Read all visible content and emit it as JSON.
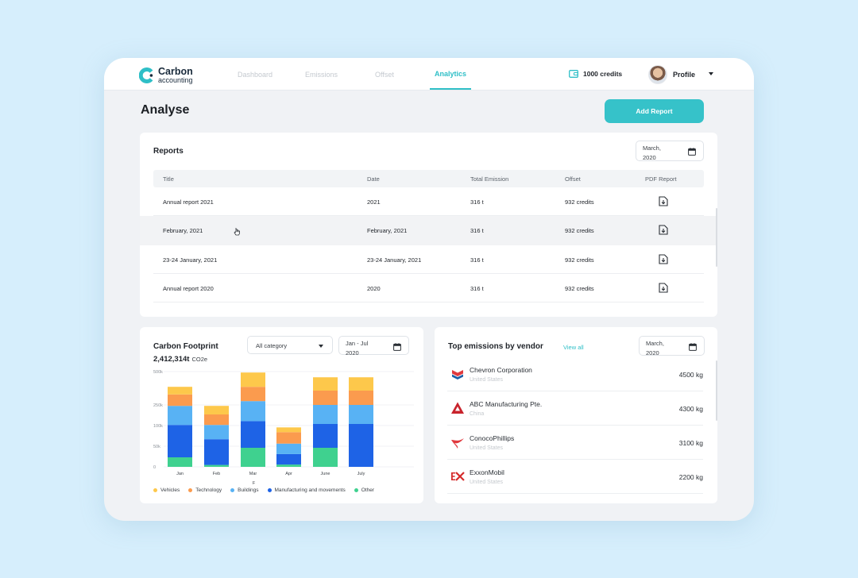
{
  "app": {
    "logo_line1": "Carbon",
    "logo_line2": "accounting",
    "brand_color": "#2fbfc7"
  },
  "nav": {
    "items": [
      {
        "label": "Dashboard"
      },
      {
        "label": "Emissions"
      },
      {
        "label": "Offset"
      },
      {
        "label": "Analytics",
        "active": true
      }
    ],
    "credits": "1000 credits",
    "profile": "Profile"
  },
  "page": {
    "title": "Analyse",
    "add_report": "Add Report"
  },
  "reports": {
    "title": "Reports",
    "date_line1": "March,",
    "date_line2": "2020",
    "columns": [
      "Title",
      "Date",
      "Total Emission",
      "Offset",
      "PDF Report"
    ],
    "rows": [
      {
        "title": "Annual report 2021",
        "date": "2021",
        "emission": "316 t",
        "offset": "932 credits"
      },
      {
        "title": "February, 2021",
        "date": "February, 2021",
        "emission": "316 t",
        "offset": "932 credits"
      },
      {
        "title": "23-24 January, 2021",
        "date": "23-24 January, 2021",
        "emission": "316 t",
        "offset": "932 credits"
      },
      {
        "title": "Annual report 2020",
        "date": "2020",
        "emission": "316 t",
        "offset": "932 credits"
      }
    ]
  },
  "footprint": {
    "title": "Carbon Footprint",
    "category": "All category",
    "range_line1": "Jan - Jul",
    "range_line2": "2020",
    "total": "2,412,314t",
    "total_unit": "CO2e"
  },
  "vendors": {
    "title": "Top emissions by vendor",
    "view_all": "View all",
    "date_line1": "March,",
    "date_line2": "2020",
    "items": [
      {
        "name": "Chevron Corporation",
        "country": "United States",
        "value": "4500 kg",
        "logo": "chevron-logo"
      },
      {
        "name": "ABC Manufacturing Pte.",
        "country": "China",
        "value": "4300 kg",
        "logo": "abc-logo"
      },
      {
        "name": "ConocoPhillips",
        "country": "United States",
        "value": "3100 kg",
        "logo": "conocophillips-logo"
      },
      {
        "name": "ExxonMobil",
        "country": "United States",
        "value": "2200 kg",
        "logo": "exxonmobil-logo"
      }
    ]
  },
  "chart_data": {
    "type": "bar",
    "stacked": true,
    "categories": [
      "Jan",
      "Feb",
      "Mar",
      "Apr",
      "June",
      "July"
    ],
    "extra_tick_label": "F",
    "yticks": [
      "0",
      "50k",
      "100k",
      "250k",
      "500k"
    ],
    "ylim": [
      0,
      500000
    ],
    "series": [
      {
        "name": "Other",
        "color": "#3fd18f",
        "values": [
          50000,
          10000,
          100000,
          12000,
          100000,
          0
        ]
      },
      {
        "name": "Manufacturing and movements",
        "color": "#1e63e6",
        "values": [
          170000,
          135000,
          140000,
          55000,
          125000,
          225000
        ]
      },
      {
        "name": "Buildings",
        "color": "#58b2f4",
        "values": [
          100000,
          75000,
          105000,
          55000,
          100000,
          100000
        ]
      },
      {
        "name": "Technology",
        "color": "#fb9b4e",
        "values": [
          60000,
          55000,
          75000,
          60000,
          75000,
          75000
        ]
      },
      {
        "name": "Vehicles",
        "color": "#fdc84b",
        "values": [
          40000,
          45000,
          75000,
          25000,
          70000,
          70000
        ]
      }
    ],
    "legend": [
      "Vehicles",
      "Technology",
      "Buildings",
      "Manufacturing and movements",
      "Other"
    ],
    "legend_position": "bottom",
    "grid": true
  }
}
